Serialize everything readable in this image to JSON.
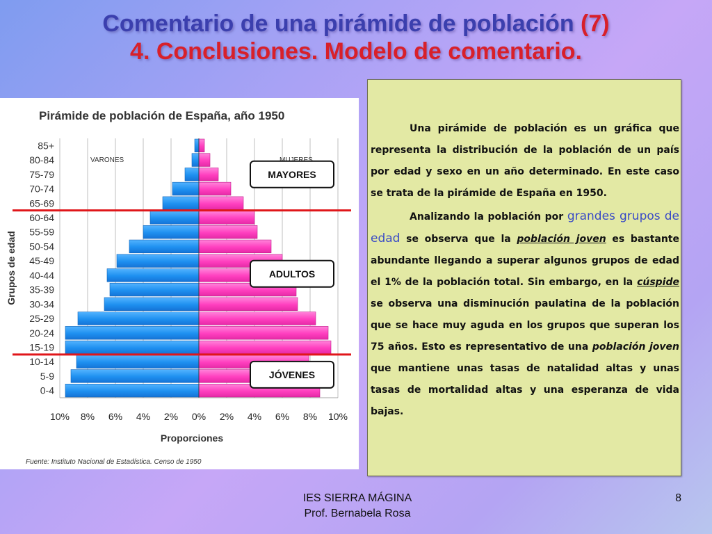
{
  "slide": {
    "title_line1": "Comentario de una pirámide de población",
    "title_number": "(7)",
    "title_line2": "4. Conclusiones. Modelo de comentario."
  },
  "chart_data": {
    "type": "bar",
    "title": "Pirámide de población de España, año 1950",
    "xlabel": "Proporciones",
    "ylabel": "Grupos de edad",
    "source": "Fuente: Instituto Nacional de Estadística. Censo de 1950",
    "categories": [
      "0-4",
      "5-9",
      "10-14",
      "15-19",
      "20-24",
      "25-29",
      "30-34",
      "35-39",
      "40-44",
      "45-49",
      "50-54",
      "55-59",
      "60-64",
      "65-69",
      "70-74",
      "75-79",
      "80-84",
      "85+"
    ],
    "series": [
      {
        "name": "VARONES",
        "color": "#1e90f0",
        "values": [
          9.6,
          9.2,
          8.8,
          9.6,
          9.6,
          8.7,
          6.8,
          6.4,
          6.6,
          5.9,
          5.0,
          4.0,
          3.5,
          2.6,
          1.9,
          1.0,
          0.5,
          0.3
        ]
      },
      {
        "name": "MUJERES",
        "color": "#ff3fbf",
        "values": [
          8.7,
          8.2,
          7.9,
          9.5,
          9.3,
          8.4,
          7.1,
          7.0,
          6.5,
          6.0,
          5.2,
          4.2,
          4.0,
          3.2,
          2.3,
          1.4,
          0.8,
          0.4
        ]
      }
    ],
    "xlim": [
      -10,
      10
    ],
    "xticks": [
      "10%",
      "8%",
      "6%",
      "4%",
      "2%",
      "0%",
      "2%",
      "4%",
      "6%",
      "8%",
      "10%"
    ],
    "annotations": [
      "MAYORES",
      "ADULTOS",
      "JÓVENES"
    ],
    "colors": {
      "grid": "#bfbfbf",
      "divider": "#e0161a"
    }
  },
  "text_panel": {
    "p1": "Una pirámide de población es un gráfica que representa la distribución de la población de un país por edad y sexo en un año determinado. En este caso se trata de la pirámide de España en 1950.",
    "p2_a": "Analizando la población por",
    "p2_hl": "grandes grupos de edad",
    "p2_b": "se observa que la",
    "p2_link1": "población joven",
    "p2_c": "es bastante abundante llegando a superar algunos grupos de edad el 1% de la población total. Sin embargo, en la",
    "p2_link2": "cúspide",
    "p2_d": "se observa una disminución paulatina de la población que se hace muy aguda en los grupos que superan los 75 años. Esto es representativo de una",
    "p2_it": "población joven",
    "p2_e": "que mantiene unas tasas de natalidad altas y unas tasas de mortalidad altas y  una esperanza de vida bajas."
  },
  "footer": {
    "line1": "IES SIERRA MÁGINA",
    "line2": "Prof. Bernabela Rosa",
    "page": "8"
  }
}
